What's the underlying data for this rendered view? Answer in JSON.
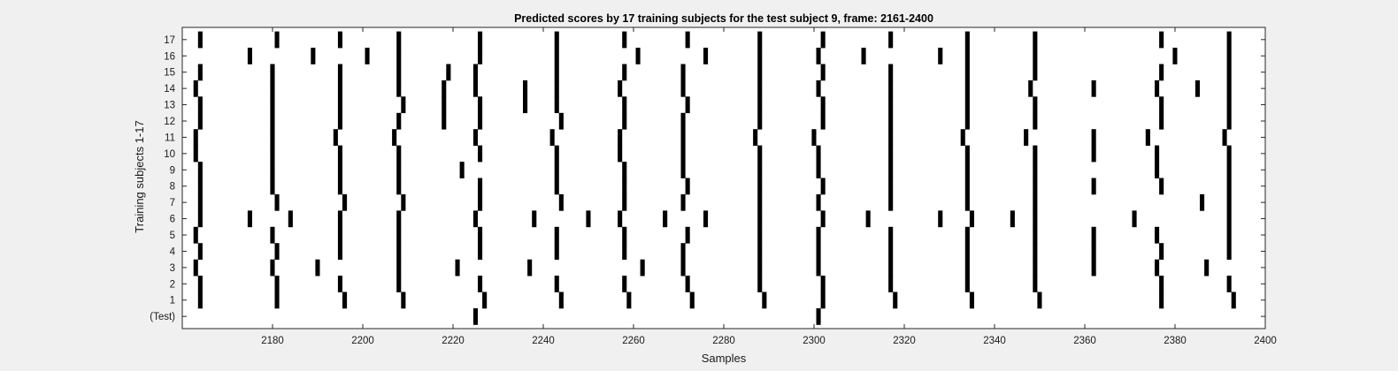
{
  "chart_data": {
    "type": "heatmap",
    "title": "Predicted scores by 17 training subjects for the test subject 9, frame: 2161-2400",
    "xlabel": "Samples",
    "ylabel": "Training subjects 1-17",
    "xlim": [
      2160,
      2400
    ],
    "xticks": [
      2180,
      2200,
      2220,
      2240,
      2260,
      2280,
      2300,
      2320,
      2340,
      2360,
      2380,
      2400
    ],
    "ytick_labels": [
      "(Test)",
      "1",
      "2",
      "3",
      "4",
      "5",
      "6",
      "7",
      "8",
      "9",
      "10",
      "11",
      "12",
      "13",
      "14",
      "15",
      "16",
      "17"
    ],
    "colors": {
      "mark": "#000000",
      "background": "#ffffff",
      "figure": "#f0f0f0"
    },
    "rows": [
      {
        "label": "(Test)",
        "x": [
          2225,
          2301
        ]
      },
      {
        "label": "1",
        "x": [
          2164,
          2181,
          2196,
          2209,
          2227,
          2244,
          2259,
          2273,
          2289,
          2302,
          2318,
          2335,
          2350,
          2377,
          2393
        ]
      },
      {
        "label": "2",
        "x": [
          2164,
          2181,
          2195,
          2208,
          2226,
          2243,
          2258,
          2272,
          2288,
          2302,
          2317,
          2334,
          2349,
          2377,
          2392
        ]
      },
      {
        "label": "3",
        "x": [
          2163,
          2180,
          2190,
          2208,
          2221,
          2237,
          2262,
          2271,
          2288,
          2301,
          2317,
          2334,
          2349,
          2362,
          2376,
          2387
        ]
      },
      {
        "label": "4",
        "x": [
          2164,
          2181,
          2195,
          2208,
          2226,
          2243,
          2258,
          2271,
          2288,
          2301,
          2317,
          2334,
          2349,
          2362,
          2377,
          2392
        ]
      },
      {
        "label": "5",
        "x": [
          2163,
          2180,
          2195,
          2208,
          2226,
          2243,
          2258,
          2272,
          2288,
          2301,
          2317,
          2334,
          2349,
          2362,
          2376,
          2392
        ]
      },
      {
        "label": "6",
        "x": [
          2164,
          2175,
          2184,
          2195,
          2208,
          2225,
          2238,
          2250,
          2257,
          2267,
          2276,
          2288,
          2302,
          2312,
          2328,
          2335,
          2344,
          2349,
          2371,
          2392
        ]
      },
      {
        "label": "7",
        "x": [
          2164,
          2181,
          2196,
          2209,
          2226,
          2244,
          2258,
          2271,
          2288,
          2301,
          2317,
          2334,
          2349,
          2386,
          2392
        ]
      },
      {
        "label": "8",
        "x": [
          2164,
          2180,
          2195,
          2208,
          2226,
          2243,
          2258,
          2272,
          2288,
          2302,
          2317,
          2334,
          2349,
          2362,
          2377,
          2392
        ]
      },
      {
        "label": "9",
        "x": [
          2164,
          2180,
          2195,
          2208,
          2222,
          2243,
          2258,
          2271,
          2288,
          2301,
          2317,
          2334,
          2349,
          2376,
          2392
        ]
      },
      {
        "label": "10",
        "x": [
          2163,
          2180,
          2195,
          2208,
          2226,
          2243,
          2257,
          2271,
          2288,
          2301,
          2317,
          2334,
          2349,
          2362,
          2376,
          2392
        ]
      },
      {
        "label": "11",
        "x": [
          2163,
          2180,
          2194,
          2207,
          2225,
          2242,
          2257,
          2271,
          2287,
          2300,
          2317,
          2333,
          2347,
          2362,
          2374,
          2391
        ]
      },
      {
        "label": "12",
        "x": [
          2164,
          2180,
          2195,
          2208,
          2218,
          2226,
          2244,
          2258,
          2271,
          2288,
          2302,
          2317,
          2334,
          2349,
          2377,
          2392
        ]
      },
      {
        "label": "13",
        "x": [
          2164,
          2180,
          2195,
          2209,
          2218,
          2226,
          2236,
          2243,
          2258,
          2272,
          2288,
          2302,
          2317,
          2334,
          2349,
          2377,
          2392
        ]
      },
      {
        "label": "14",
        "x": [
          2163,
          2180,
          2195,
          2208,
          2218,
          2225,
          2236,
          2243,
          2257,
          2271,
          2288,
          2301,
          2317,
          2334,
          2348,
          2362,
          2376,
          2385,
          2392
        ]
      },
      {
        "label": "15",
        "x": [
          2164,
          2180,
          2195,
          2208,
          2219,
          2225,
          2243,
          2258,
          2271,
          2288,
          2302,
          2317,
          2334,
          2349,
          2377,
          2392
        ]
      },
      {
        "label": "16",
        "x": [
          2175,
          2189,
          2201,
          2208,
          2226,
          2243,
          2261,
          2276,
          2288,
          2301,
          2311,
          2328,
          2334,
          2349,
          2380,
          2392
        ]
      },
      {
        "label": "17",
        "x": [
          2164,
          2181,
          2195,
          2208,
          2226,
          2243,
          2258,
          2272,
          2288,
          2302,
          2317,
          2334,
          2349,
          2377,
          2392
        ]
      }
    ]
  }
}
